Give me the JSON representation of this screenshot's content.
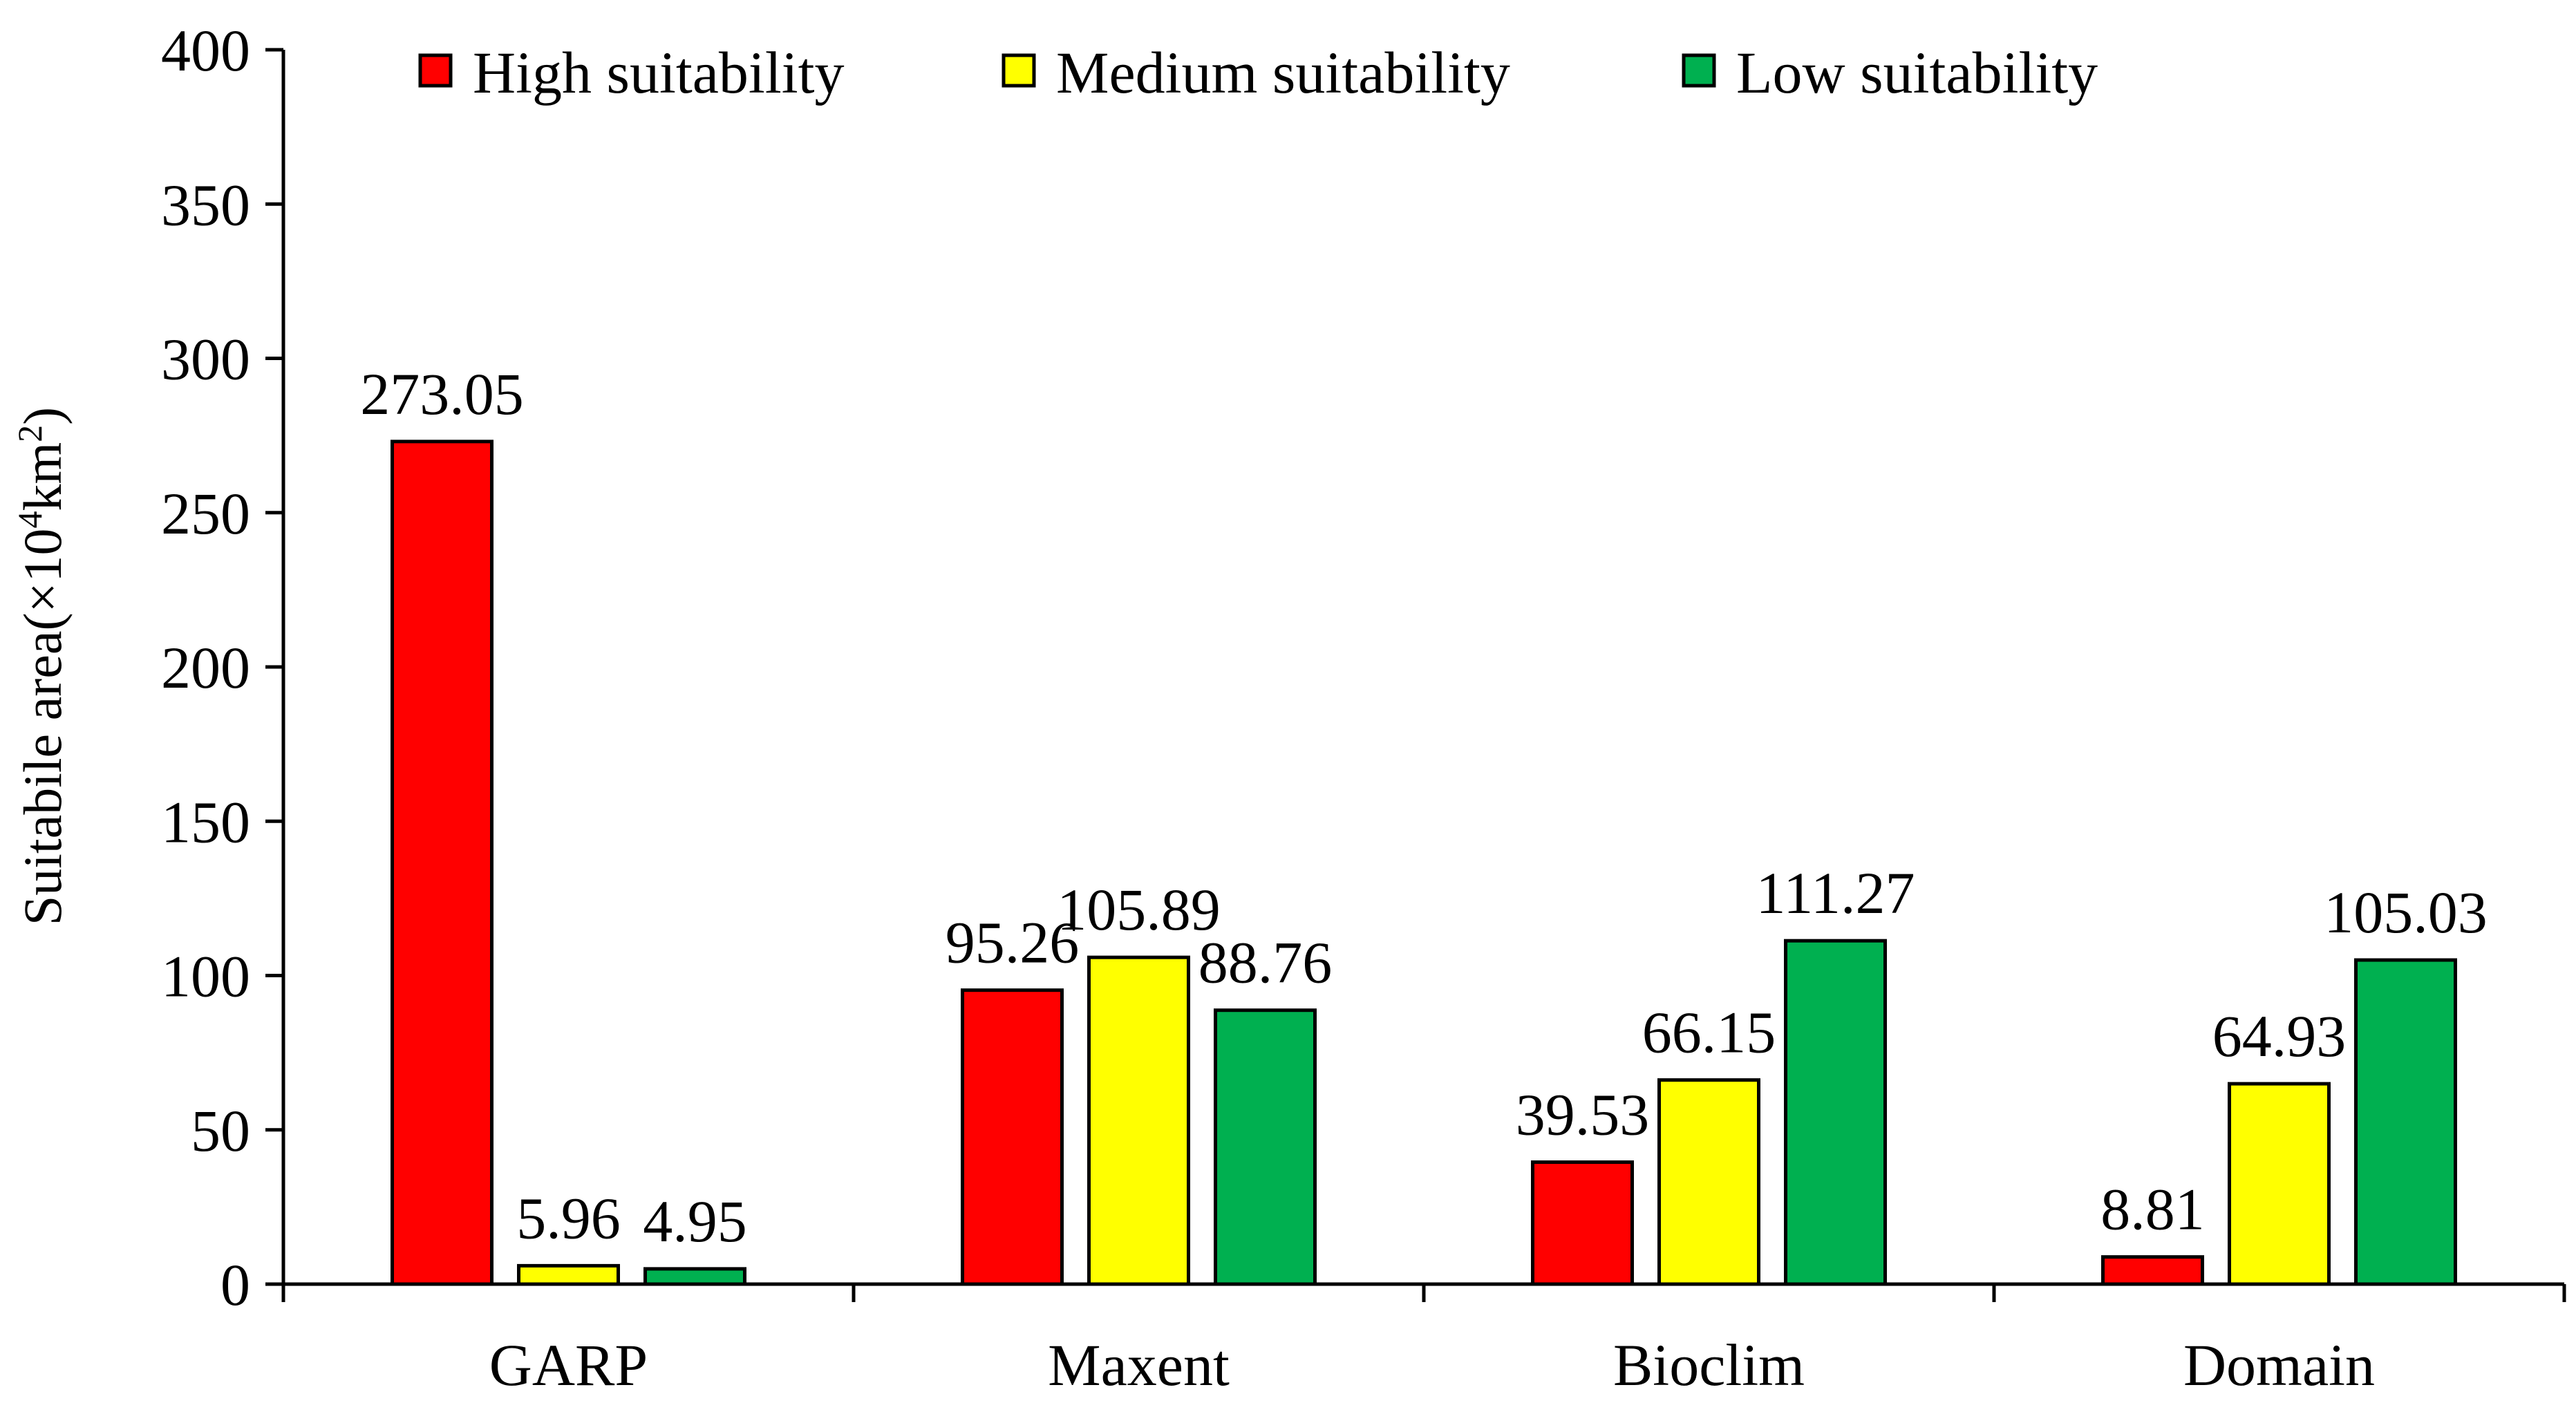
{
  "chart_data": {
    "type": "bar",
    "title": "",
    "xlabel": "",
    "ylabel": {
      "prefix": "Suitabile area(×10",
      "sup1": "4",
      "mid": "km",
      "sup2": "2",
      "suffix": ")"
    },
    "ylim": [
      0,
      400
    ],
    "yticks": [
      0,
      50,
      100,
      150,
      200,
      250,
      300,
      350,
      400
    ],
    "grid": false,
    "legend_position": "top",
    "categories": [
      "GARP",
      "Maxent",
      "Bioclim",
      "Domain"
    ],
    "series": [
      {
        "name": "High suitability",
        "color": "#ff0000",
        "values": [
          273.05,
          95.26,
          39.53,
          8.81
        ],
        "labels": [
          "273.05",
          "95.26",
          "39.53",
          "8.81"
        ]
      },
      {
        "name": "Medium suitability",
        "color": "#ffff00",
        "values": [
          5.96,
          105.89,
          66.15,
          64.93
        ],
        "labels": [
          "5.96",
          "105.89",
          "66.15",
          "64.93"
        ]
      },
      {
        "name": "Low suitability",
        "color": "#00b050",
        "values": [
          4.95,
          88.76,
          111.27,
          105.03
        ],
        "labels": [
          "4.95",
          "88.76",
          "111.27",
          "105.03"
        ]
      }
    ]
  }
}
